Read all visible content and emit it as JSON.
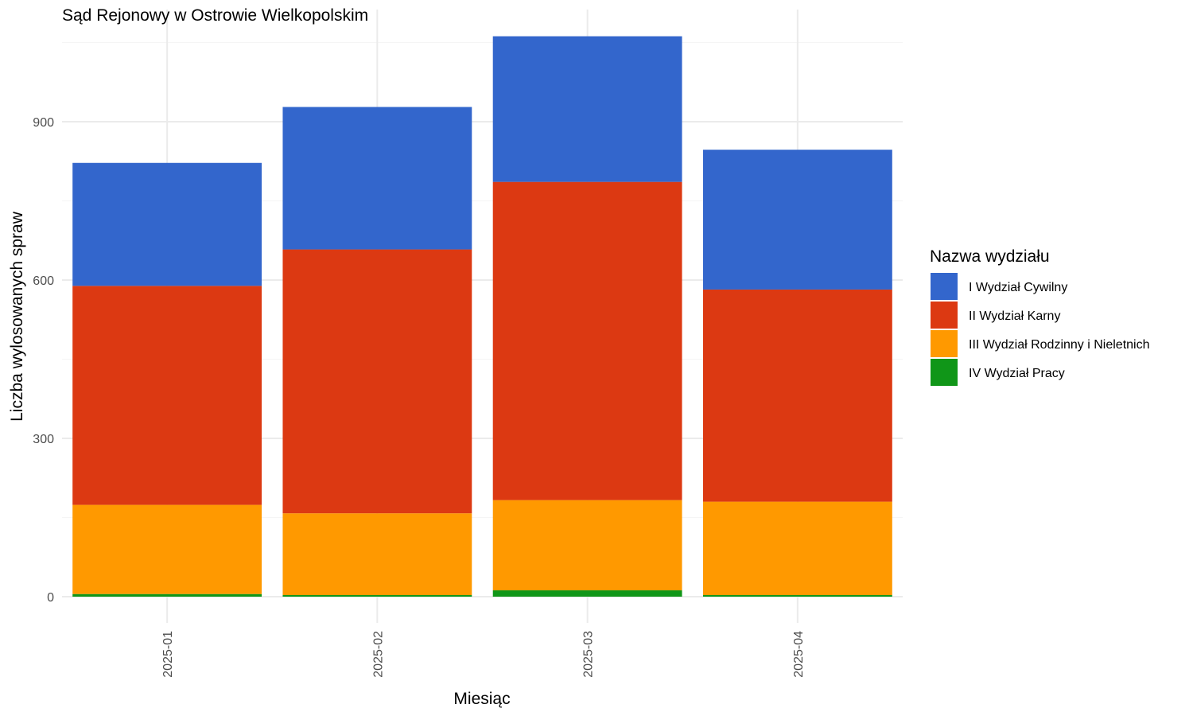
{
  "chart_data": {
    "type": "bar",
    "stacked": true,
    "title": "Sąd Rejonowy w Ostrowie Wielkopolskim",
    "xlabel": "Miesiąc",
    "ylabel": "Liczba wylosowanych spraw",
    "categories": [
      "2025-01",
      "2025-02",
      "2025-03",
      "2025-04"
    ],
    "ylim": [
      0,
      1100
    ],
    "yticks": [
      0,
      300,
      600,
      900
    ],
    "grid": true,
    "legend": {
      "title": "Nazwa wydziału",
      "placement": "right"
    },
    "series": [
      {
        "name": "IV Wydział Pracy",
        "color": "#109618",
        "values": [
          5,
          3,
          12,
          3
        ]
      },
      {
        "name": "III Wydział Rodzinny i Nieletnich",
        "color": "#FF9900",
        "values": [
          169,
          155,
          171,
          177
        ]
      },
      {
        "name": "II Wydział Karny",
        "color": "#DC3912",
        "values": [
          415,
          500,
          603,
          402
        ]
      },
      {
        "name": "I Wydział Cywilny",
        "color": "#3366CC",
        "values": [
          233,
          270,
          276,
          265
        ]
      }
    ],
    "legend_order": [
      "I Wydział Cywilny",
      "II Wydział Karny",
      "III Wydział Rodzinny i Nieletnich",
      "IV Wydział Pracy"
    ]
  }
}
